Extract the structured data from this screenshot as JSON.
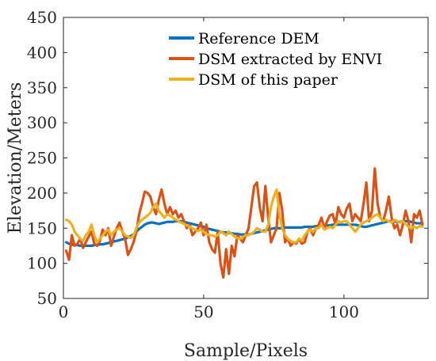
{
  "chart_data": {
    "type": "line",
    "title": "",
    "xlabel": "Sample/Pixels",
    "ylabel": "Elevation/Meters",
    "xlim": [
      0,
      130
    ],
    "ylim": [
      50,
      450
    ],
    "xticks": [
      0,
      50,
      100
    ],
    "yticks": [
      50,
      100,
      150,
      200,
      250,
      300,
      350,
      400,
      450
    ],
    "legend_position": "top-right",
    "grid": false,
    "x": [
      1,
      2,
      3,
      4,
      5,
      6,
      7,
      8,
      9,
      10,
      11,
      12,
      13,
      14,
      15,
      16,
      17,
      18,
      19,
      20,
      21,
      22,
      23,
      24,
      25,
      26,
      27,
      28,
      29,
      30,
      31,
      32,
      33,
      34,
      35,
      36,
      37,
      38,
      39,
      40,
      41,
      42,
      43,
      44,
      45,
      46,
      47,
      48,
      49,
      50,
      51,
      52,
      53,
      54,
      55,
      56,
      57,
      58,
      59,
      60,
      61,
      62,
      63,
      64,
      65,
      66,
      67,
      68,
      69,
      70,
      71,
      72,
      73,
      74,
      75,
      76,
      77,
      78,
      79,
      80,
      81,
      82,
      83,
      84,
      85,
      86,
      87,
      88,
      89,
      90,
      91,
      92,
      93,
      94,
      95,
      96,
      97,
      98,
      99,
      100,
      101,
      102,
      103,
      104,
      105,
      106,
      107,
      108,
      109,
      110,
      111,
      112,
      113,
      114,
      115,
      116,
      117,
      118,
      119,
      120,
      121,
      122,
      123,
      124,
      125,
      126,
      127,
      128
    ],
    "series": [
      {
        "name": "Reference DEM",
        "color": "#0072BD",
        "values": [
          130,
          128,
          127,
          126,
          126,
          125,
          125,
          125,
          125,
          125,
          126,
          126,
          127,
          127,
          128,
          129,
          130,
          131,
          132,
          133,
          134,
          135,
          137,
          139,
          141,
          145,
          149,
          152,
          155,
          157,
          158,
          158,
          157,
          156,
          157,
          158,
          159,
          159,
          159,
          160,
          160,
          160,
          159,
          158,
          157,
          156,
          155,
          154,
          153,
          152,
          150,
          149,
          148,
          147,
          146,
          145,
          144,
          144,
          143,
          143,
          142,
          142,
          141,
          141,
          141,
          141,
          142,
          143,
          144,
          145,
          146,
          147,
          148,
          149,
          150,
          150,
          150,
          150,
          151,
          151,
          151,
          151,
          151,
          151,
          151,
          152,
          152,
          152,
          152,
          153,
          153,
          154,
          154,
          154,
          154,
          155,
          155,
          155,
          155,
          155,
          155,
          155,
          155,
          155,
          154,
          153,
          152,
          152,
          153,
          154,
          155,
          156,
          157,
          158,
          159,
          160,
          160,
          160,
          159,
          159,
          160,
          160,
          160,
          159,
          158,
          157,
          157,
          157
        ]
      },
      {
        "name": "DSM extracted by ENVI",
        "color": "#D95319",
        "values": [
          118,
          105,
          140,
          125,
          128,
          135,
          122,
          130,
          138,
          145,
          128,
          125,
          132,
          148,
          140,
          150,
          125,
          138,
          150,
          158,
          145,
          135,
          112,
          120,
          130,
          145,
          170,
          185,
          202,
          200,
          195,
          180,
          170,
          190,
          205,
          185,
          170,
          180,
          170,
          175,
          165,
          170,
          160,
          150,
          155,
          140,
          145,
          150,
          158,
          140,
          155,
          130,
          120,
          115,
          145,
          100,
          80,
          120,
          85,
          125,
          110,
          140,
          135,
          130,
          140,
          150,
          180,
          210,
          215,
          180,
          160,
          210,
          165,
          130,
          140,
          150,
          200,
          175,
          130,
          135,
          125,
          130,
          128,
          135,
          128,
          130,
          145,
          150,
          140,
          150,
          155,
          165,
          150,
          160,
          168,
          170,
          155,
          180,
          170,
          165,
          178,
          185,
          160,
          170,
          165,
          160,
          185,
          215,
          160,
          175,
          235,
          185,
          165,
          160,
          175,
          195,
          165,
          150,
          155,
          140,
          155,
          175,
          160,
          130,
          170,
          165,
          175,
          155
        ]
      },
      {
        "name": "DSM of this paper",
        "color": "#EDB120",
        "values": [
          162,
          160,
          155,
          145,
          140,
          135,
          132,
          140,
          145,
          155,
          140,
          130,
          135,
          140,
          145,
          148,
          140,
          145,
          148,
          150,
          145,
          140,
          138,
          136,
          140,
          150,
          158,
          162,
          165,
          168,
          172,
          180,
          185,
          175,
          170,
          165,
          170,
          168,
          165,
          162,
          160,
          158,
          156,
          154,
          152,
          150,
          148,
          146,
          148,
          145,
          142,
          140,
          140,
          138,
          140,
          145,
          143,
          140,
          145,
          142,
          138,
          136,
          135,
          138,
          140,
          140,
          142,
          145,
          150,
          148,
          145,
          145,
          155,
          180,
          195,
          205,
          170,
          150,
          140,
          135,
          132,
          130,
          130,
          135,
          132,
          140,
          145,
          148,
          145,
          150,
          150,
          155,
          148,
          150,
          152,
          150,
          155,
          160,
          158,
          160,
          160,
          155,
          150,
          145,
          150,
          155,
          158,
          160,
          162,
          165,
          168,
          170,
          165,
          160,
          162,
          160,
          158,
          162,
          160,
          158,
          160,
          156,
          152,
          150,
          152,
          150,
          153,
          152
        ]
      }
    ]
  }
}
